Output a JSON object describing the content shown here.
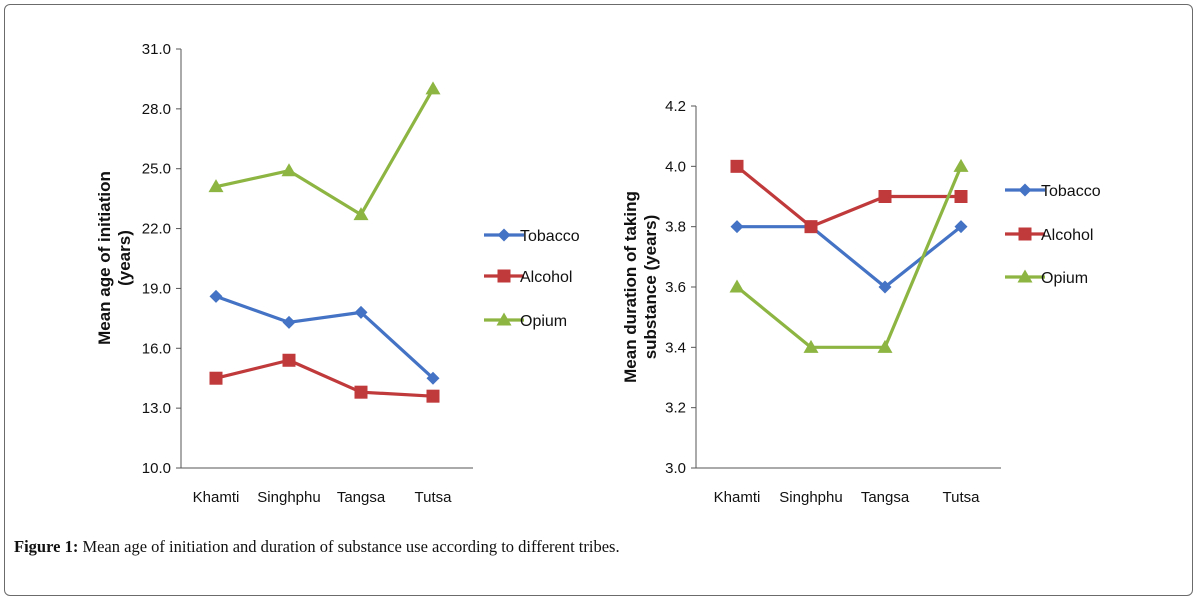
{
  "caption": {
    "label": "Figure 1:",
    "text": " Mean age of initiation and duration of substance use according to different tribes."
  },
  "colors": {
    "tobacco": "#4472c4",
    "alcohol": "#c0393b",
    "opium": "#8db542"
  },
  "chart_data": [
    {
      "type": "line",
      "title": "",
      "categories": [
        "Khamti",
        "Singhphu",
        "Tangsa",
        "Tutsa"
      ],
      "ylabel": [
        "Mean age of initiation",
        "(years)"
      ],
      "xlabel": "",
      "ylim": [
        10.0,
        31.0
      ],
      "yticks": [
        "10.0",
        "13.0",
        "16.0",
        "19.0",
        "22.0",
        "25.0",
        "28.0",
        "31.0"
      ],
      "series": [
        {
          "name": "Tobacco",
          "key": "tobacco",
          "marker": "diamond",
          "values": [
            18.6,
            17.3,
            17.8,
            14.5
          ]
        },
        {
          "name": "Alcohol",
          "key": "alcohol",
          "marker": "square",
          "values": [
            14.5,
            15.4,
            13.8,
            13.6
          ]
        },
        {
          "name": "Opium",
          "key": "opium",
          "marker": "triangle",
          "values": [
            24.1,
            24.9,
            22.7,
            29.0
          ]
        }
      ]
    },
    {
      "type": "line",
      "title": "",
      "categories": [
        "Khamti",
        "Singhphu",
        "Tangsa",
        "Tutsa"
      ],
      "ylabel": [
        "Mean duration of taking",
        "substance (years)"
      ],
      "xlabel": "",
      "ylim": [
        3.0,
        4.2
      ],
      "yticks": [
        "3.0",
        "3.2",
        "3.4",
        "3.6",
        "3.8",
        "4.0",
        "4.2"
      ],
      "series": [
        {
          "name": "Tobacco",
          "key": "tobacco",
          "marker": "diamond",
          "values": [
            3.8,
            3.8,
            3.6,
            3.8
          ]
        },
        {
          "name": "Alcohol",
          "key": "alcohol",
          "marker": "square",
          "values": [
            4.0,
            3.8,
            3.9,
            3.9
          ]
        },
        {
          "name": "Opium",
          "key": "opium",
          "marker": "triangle",
          "values": [
            3.6,
            3.4,
            3.4,
            4.0
          ]
        }
      ]
    }
  ]
}
